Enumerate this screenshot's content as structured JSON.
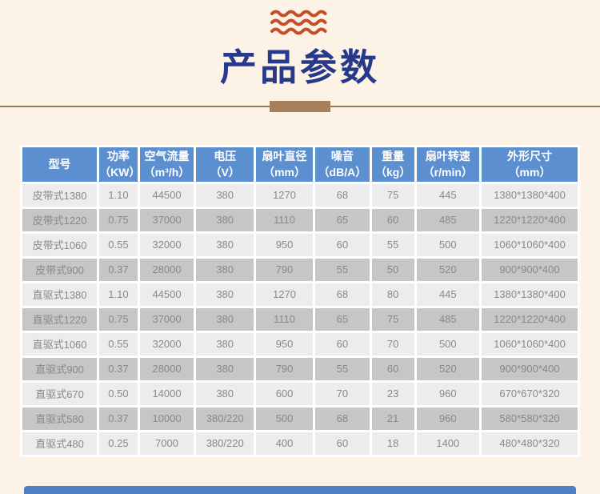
{
  "theme": {
    "bg": "#fcf3e6",
    "navy": "#27398b",
    "wave": "#c54e28",
    "divider_line": "#9c7c54",
    "divider_block": "#a5805a",
    "header_blue": "#5b8fd0",
    "row_light": "#ececec",
    "row_dark": "#c6c6c6",
    "cell_text": "#898989",
    "footer_blue": "#4d80c4"
  },
  "icons": {
    "wave_icon": "three-wavy-lines"
  },
  "header": {
    "title": "产品参数"
  },
  "table": {
    "columns": [
      {
        "line1": "型号",
        "line2": ""
      },
      {
        "line1": "功率",
        "line2": "（KW）"
      },
      {
        "line1": "空气流量",
        "line2": "（m³/h）"
      },
      {
        "line1": "电压",
        "line2": "（V）"
      },
      {
        "line1": "扇叶直径",
        "line2": "（mm）"
      },
      {
        "line1": "噪音",
        "line2": "（dB/A）"
      },
      {
        "line1": "重量",
        "line2": "（kg）"
      },
      {
        "line1": "扇叶转速",
        "line2": "（r/min）"
      },
      {
        "line1": "外形尺寸",
        "line2": "（mm）"
      }
    ],
    "rows": [
      [
        "皮带式1380",
        "1.10",
        "44500",
        "380",
        "1270",
        "68",
        "75",
        "445",
        "1380*1380*400"
      ],
      [
        "皮带式1220",
        "0.75",
        "37000",
        "380",
        "1110",
        "65",
        "60",
        "485",
        "1220*1220*400"
      ],
      [
        "皮带式1060",
        "0.55",
        "32000",
        "380",
        "950",
        "60",
        "55",
        "500",
        "1060*1060*400"
      ],
      [
        "皮带式900",
        "0.37",
        "28000",
        "380",
        "790",
        "55",
        "50",
        "520",
        "900*900*400"
      ],
      [
        "直驱式1380",
        "1.10",
        "44500",
        "380",
        "1270",
        "68",
        "80",
        "445",
        "1380*1380*400"
      ],
      [
        "直驱式1220",
        "0.75",
        "37000",
        "380",
        "1110",
        "65",
        "75",
        "485",
        "1220*1220*400"
      ],
      [
        "直驱式1060",
        "0.55",
        "32000",
        "380",
        "950",
        "60",
        "70",
        "500",
        "1060*1060*400"
      ],
      [
        "直驱式900",
        "0.37",
        "28000",
        "380",
        "790",
        "55",
        "60",
        "520",
        "900*900*400"
      ],
      [
        "直驱式670",
        "0.50",
        "14000",
        "380",
        "600",
        "70",
        "23",
        "960",
        "670*670*320"
      ],
      [
        "直驱式580",
        "0.37",
        "10000",
        "380/220",
        "500",
        "68",
        "21",
        "960",
        "580*580*320"
      ],
      [
        "直驱式480",
        "0.25",
        "7000",
        "380/220",
        "400",
        "60",
        "18",
        "1400",
        "480*480*320"
      ]
    ]
  }
}
